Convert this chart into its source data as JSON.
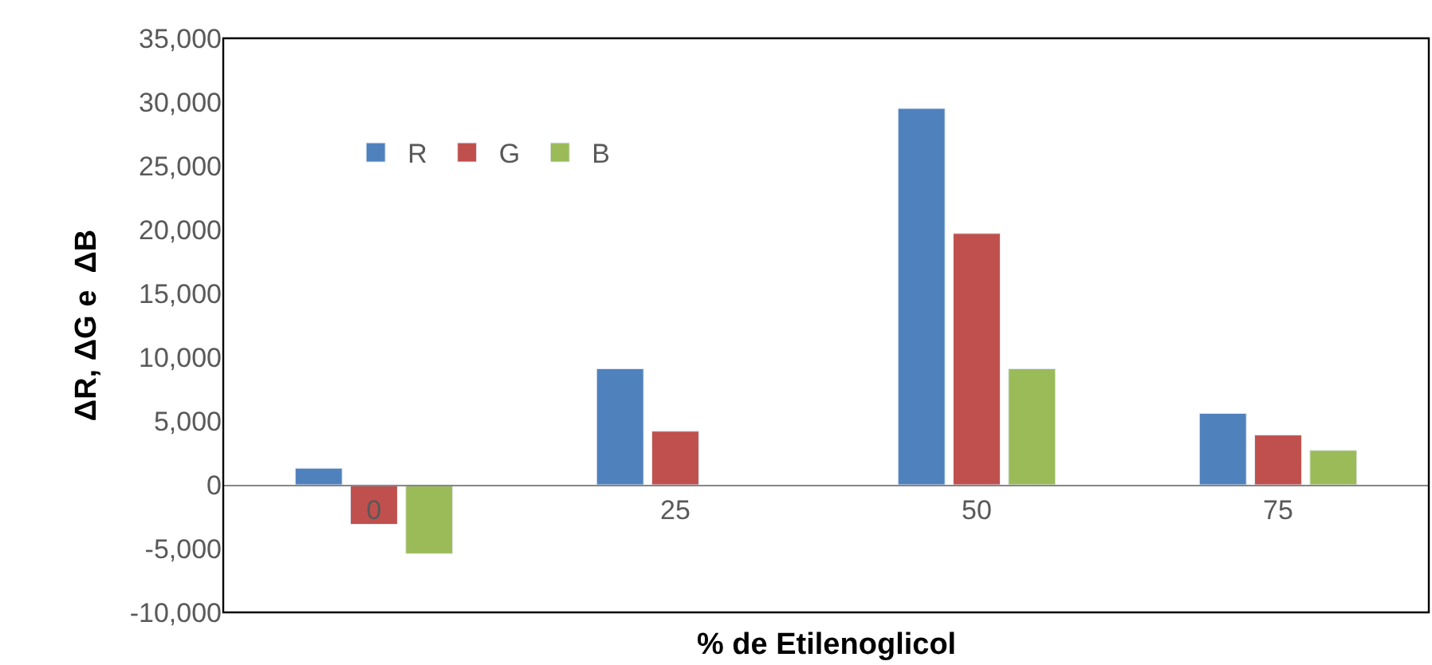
{
  "chart_data": {
    "type": "bar",
    "xlabel": "% de Etilenoglicol",
    "ylabel": "ΔR, ΔG e  ΔB",
    "categories": [
      "0",
      "25",
      "50",
      "75"
    ],
    "series": [
      {
        "name": "R",
        "color": "#4f81bd",
        "values": [
          1300,
          9100,
          29500,
          5600
        ]
      },
      {
        "name": "G",
        "color": "#c0504d",
        "values": [
          -3100,
          4200,
          19700,
          3900
        ]
      },
      {
        "name": "B",
        "color": "#9bbb59",
        "values": [
          -5400,
          null,
          9100,
          2700
        ]
      }
    ],
    "ylim": [
      -10000,
      35000
    ],
    "yticks": [
      {
        "value": -10000,
        "label": "-10,000"
      },
      {
        "value": -5000,
        "label": "-5,000"
      },
      0,
      {
        "value": 5000,
        "label": "5,000"
      },
      {
        "value": 10000,
        "label": "10,000"
      },
      {
        "value": 15000,
        "label": "15,000"
      },
      {
        "value": 20000,
        "label": "20,000"
      },
      {
        "value": 25000,
        "label": "25,000"
      },
      {
        "value": 30000,
        "label": "30,000"
      },
      {
        "value": 35000,
        "label": "35,000"
      }
    ],
    "legend": "top left"
  }
}
